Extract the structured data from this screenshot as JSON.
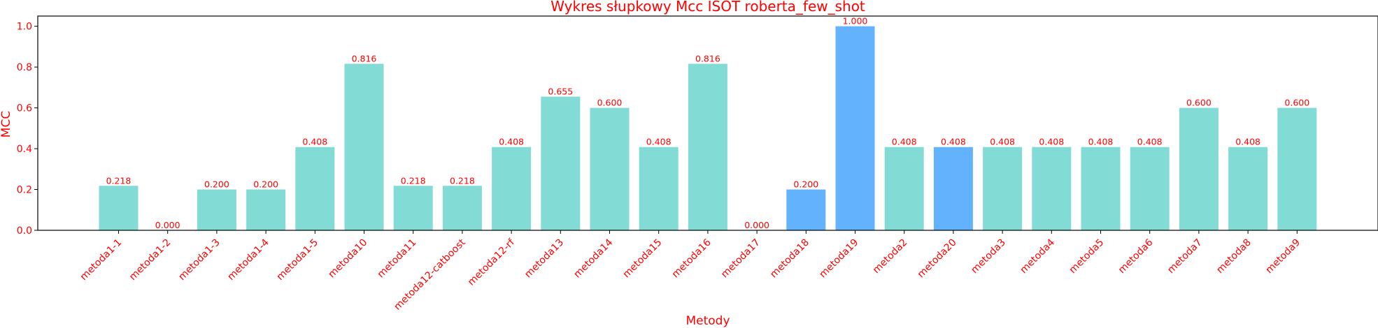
{
  "chart_data": {
    "type": "bar",
    "title": "Wykres słupkowy Mcc ISOT roberta_few_shot",
    "xlabel": "Metody",
    "ylabel": "MCC",
    "ylim": [
      0,
      1.05
    ],
    "yticks": [
      "0.0",
      "0.2",
      "0.4",
      "0.6",
      "0.8",
      "1.0"
    ],
    "grid": false,
    "text_color": "#ff0000",
    "categories": [
      "metoda1-1",
      "metoda1-2",
      "metoda1-3",
      "metoda1-4",
      "metoda1-5",
      "metoda10",
      "metoda11",
      "metoda12-catboost",
      "metoda12-rf",
      "metoda13",
      "metoda14",
      "metoda15",
      "metoda16",
      "metoda17",
      "metoda18",
      "metoda19",
      "metoda2",
      "metoda20",
      "metoda3",
      "metoda4",
      "metoda5",
      "metoda6",
      "metoda7",
      "metoda8",
      "metoda9"
    ],
    "values": [
      0.218,
      0.0,
      0.2,
      0.2,
      0.408,
      0.816,
      0.218,
      0.218,
      0.408,
      0.655,
      0.6,
      0.408,
      0.816,
      0.0,
      0.2,
      1.0,
      0.408,
      0.408,
      0.408,
      0.408,
      0.408,
      0.408,
      0.6,
      0.408,
      0.6
    ],
    "value_labels": [
      "0.218",
      "0.000",
      "0.200",
      "0.200",
      "0.408",
      "0.816",
      "0.218",
      "0.218",
      "0.408",
      "0.655",
      "0.600",
      "0.408",
      "0.816",
      "0.000",
      "0.200",
      "1.000",
      "0.408",
      "0.408",
      "0.408",
      "0.408",
      "0.408",
      "0.408",
      "0.600",
      "0.408",
      "0.600"
    ],
    "bar_colors": [
      "#83dbd6",
      "#83dbd6",
      "#83dbd6",
      "#83dbd6",
      "#83dbd6",
      "#83dbd6",
      "#83dbd6",
      "#83dbd6",
      "#83dbd6",
      "#83dbd6",
      "#83dbd6",
      "#83dbd6",
      "#83dbd6",
      "#83dbd6",
      "#63b2fe",
      "#63b2fe",
      "#83dbd6",
      "#63b2fe",
      "#83dbd6",
      "#83dbd6",
      "#83dbd6",
      "#83dbd6",
      "#83dbd6",
      "#83dbd6",
      "#83dbd6"
    ]
  }
}
